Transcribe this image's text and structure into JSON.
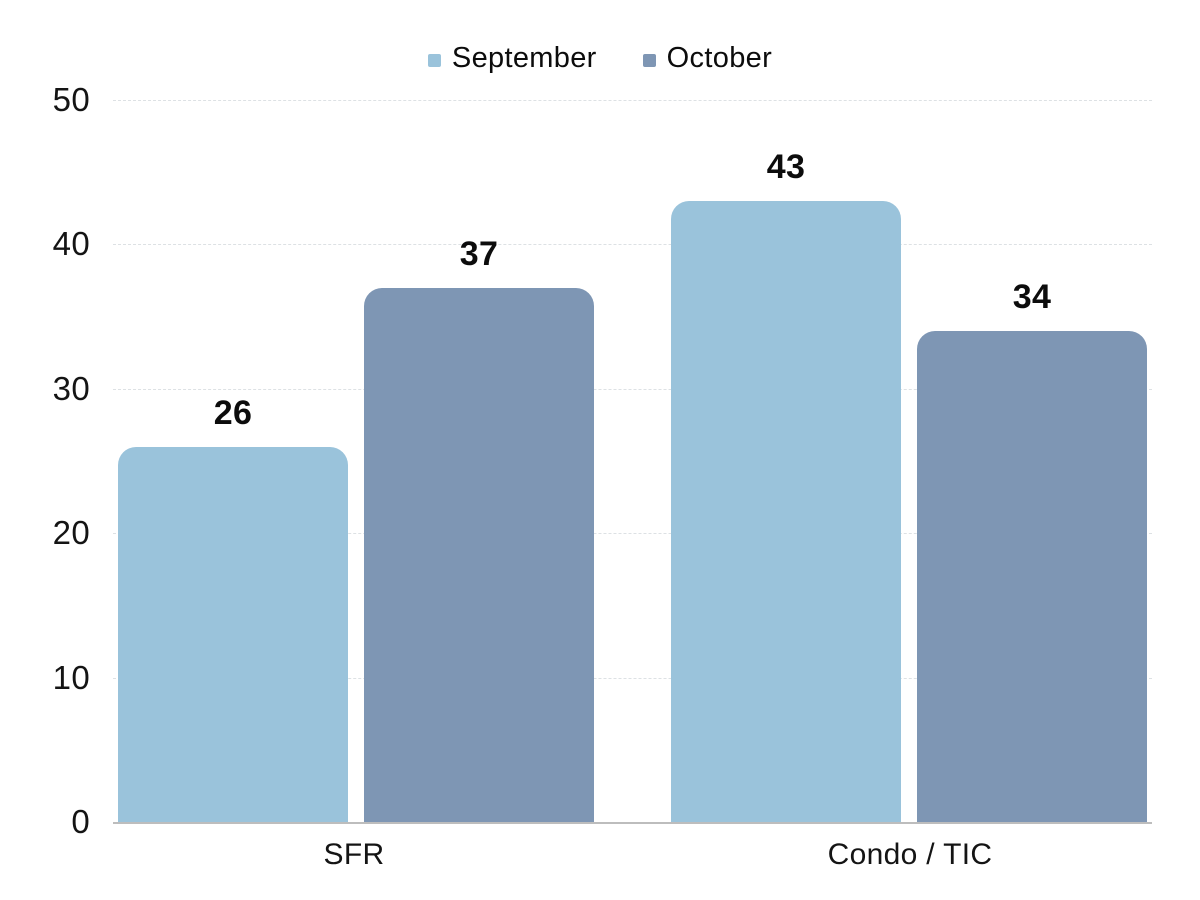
{
  "chart_data": {
    "type": "bar",
    "categories": [
      "SFR",
      "Condo / TIC"
    ],
    "series": [
      {
        "name": "September",
        "values": [
          26,
          43
        ],
        "color": "#9AC3DB"
      },
      {
        "name": "October",
        "values": [
          37,
          34
        ],
        "color": "#7E96B4"
      }
    ],
    "title": "",
    "xlabel": "",
    "ylabel": "",
    "ylim": [
      0,
      50
    ],
    "yticks": [
      0,
      10,
      20,
      30,
      40,
      50
    ],
    "grid": true,
    "gridline_style": "dashed",
    "legend_position": "top-center",
    "value_labels": true,
    "colors": {
      "gridline": "#DDE1E4",
      "baseline": "#BDBDBD",
      "text": "#111111",
      "background": "#FFFFFF"
    }
  }
}
